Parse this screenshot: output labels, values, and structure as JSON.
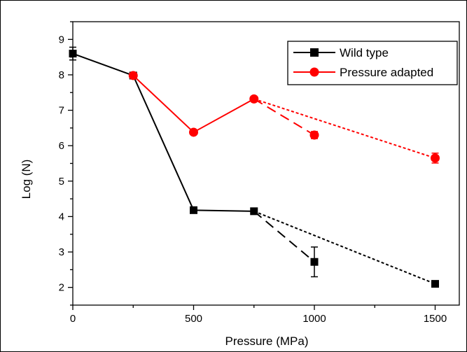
{
  "chart_data": {
    "type": "line",
    "xlabel": "Pressure (MPa)",
    "ylabel": "Log (N)",
    "xlim": [
      0,
      1600
    ],
    "ylim": [
      1.5,
      9.5
    ],
    "x_ticks": [
      0,
      500,
      1000,
      1500
    ],
    "y_ticks": [
      2,
      3,
      4,
      5,
      6,
      7,
      8,
      9
    ],
    "legend_position": "top-right",
    "grid": false,
    "series": [
      {
        "name": "Wild type",
        "color": "#000000",
        "marker": "square",
        "x": [
          0,
          250,
          500,
          750
        ],
        "values": [
          8.6,
          7.98,
          4.18,
          4.15
        ],
        "errors": [
          0.18,
          0.06,
          0.05,
          0.05
        ],
        "dashed_segments": [
          {
            "style": "long-dash",
            "x": [
              750,
              1000
            ],
            "values": [
              4.15,
              2.72
            ],
            "errors": [
              0.05,
              0.42
            ]
          },
          {
            "style": "short-dash",
            "x": [
              750,
              1500
            ],
            "values": [
              4.15,
              2.1
            ],
            "errors": [
              0.05,
              0.05
            ]
          }
        ]
      },
      {
        "name": "Pressure adapted",
        "color": "#ff0000",
        "marker": "circle",
        "x": [
          250,
          500,
          750
        ],
        "values": [
          7.98,
          6.38,
          7.32
        ],
        "errors": [
          0.05,
          0.05,
          0.06
        ],
        "dashed_segments": [
          {
            "style": "long-dash",
            "x": [
              750,
              1000
            ],
            "values": [
              7.32,
              6.3
            ],
            "errors": [
              0.06,
              0.1
            ]
          },
          {
            "style": "short-dash",
            "x": [
              750,
              1500
            ],
            "values": [
              7.32,
              5.65
            ],
            "errors": [
              0.06,
              0.14
            ]
          }
        ]
      }
    ]
  }
}
